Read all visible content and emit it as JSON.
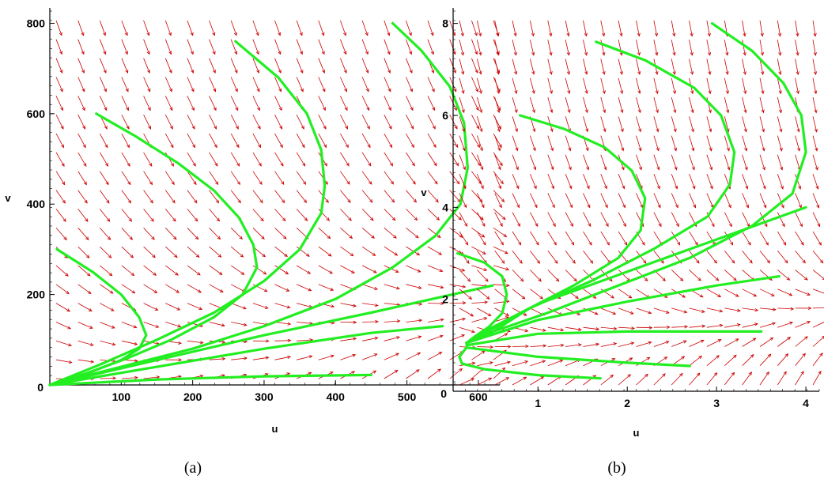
{
  "chart_data": [
    {
      "type": "line",
      "kind": "phase-portrait",
      "caption": "(a)",
      "xlabel": "u",
      "ylabel": "v",
      "xlim": [
        0,
        630
      ],
      "ylim": [
        0,
        820
      ],
      "xticks": [
        100,
        200,
        300,
        400,
        500,
        600
      ],
      "yticks": [
        200,
        400,
        600,
        800
      ],
      "origin_label": "0",
      "field_color": "#cc0000",
      "curve_color": "#22ee22",
      "series": [
        {
          "x": [
            10,
            60,
            100,
            125,
            135,
            125,
            100,
            60,
            20,
            0
          ],
          "y": [
            300,
            250,
            200,
            150,
            110,
            80,
            55,
            30,
            10,
            0
          ]
        },
        {
          "x": [
            65,
            120,
            180,
            230,
            265,
            285,
            290,
            270,
            230,
            170,
            110,
            50,
            0
          ],
          "y": [
            600,
            550,
            490,
            430,
            370,
            310,
            260,
            200,
            150,
            100,
            60,
            25,
            0
          ]
        },
        {
          "x": [
            260,
            320,
            360,
            380,
            385,
            380,
            350,
            300,
            230,
            150,
            70,
            0
          ],
          "y": [
            760,
            680,
            600,
            520,
            440,
            380,
            300,
            230,
            160,
            100,
            45,
            0
          ]
        },
        {
          "x": [
            480,
            520,
            560,
            580,
            585,
            575,
            540,
            480,
            400,
            300,
            200,
            100,
            0
          ],
          "y": [
            800,
            740,
            660,
            580,
            480,
            400,
            330,
            260,
            190,
            130,
            80,
            40,
            0
          ]
        },
        {
          "x": [
            0,
            150,
            300,
            450,
            620
          ],
          "y": [
            0,
            55,
            110,
            160,
            220
          ]
        },
        {
          "x": [
            0,
            150,
            300,
            450,
            550
          ],
          "y": [
            0,
            40,
            80,
            115,
            130
          ]
        },
        {
          "x": [
            0,
            150,
            300,
            450
          ],
          "y": [
            0,
            12,
            19,
            22
          ]
        }
      ]
    },
    {
      "type": "line",
      "kind": "phase-portrait",
      "caption": "(b)",
      "xlabel": "u",
      "ylabel": "v",
      "xlim": [
        0.05,
        4.15
      ],
      "ylim": [
        0,
        8.2
      ],
      "xticks": [
        1,
        2,
        3,
        4
      ],
      "yticks": [
        2,
        4,
        6,
        8
      ],
      "origin_label": "0",
      "field_color": "#cc0000",
      "curve_color": "#22ee22",
      "series": [
        {
          "x": [
            0.1,
            0.4,
            0.6,
            0.65,
            0.6,
            0.45,
            0.3,
            0.2
          ],
          "y": [
            3.0,
            2.8,
            2.5,
            2.1,
            1.7,
            1.4,
            1.2,
            1.05
          ]
        },
        {
          "x": [
            0.8,
            1.3,
            1.75,
            2.05,
            2.2,
            2.15,
            1.9,
            1.4,
            0.9,
            0.5,
            0.2
          ],
          "y": [
            6.0,
            5.7,
            5.3,
            4.8,
            4.2,
            3.5,
            2.9,
            2.3,
            1.8,
            1.3,
            1.05
          ]
        },
        {
          "x": [
            1.65,
            2.2,
            2.75,
            3.05,
            3.2,
            3.15,
            2.9,
            2.3,
            1.6,
            0.9,
            0.4,
            0.2
          ],
          "y": [
            7.6,
            7.2,
            6.6,
            6.0,
            5.2,
            4.5,
            3.8,
            3.1,
            2.4,
            1.8,
            1.3,
            1.05
          ]
        },
        {
          "x": [
            2.95,
            3.4,
            3.75,
            3.95,
            4.0,
            3.85,
            3.4,
            2.7,
            1.9,
            1.1,
            0.5,
            0.2
          ],
          "y": [
            8.0,
            7.4,
            6.7,
            6.0,
            5.2,
            4.3,
            3.6,
            2.9,
            2.3,
            1.7,
            1.3,
            1.05
          ]
        },
        {
          "x": [
            0.2,
            1.0,
            2.0,
            3.0,
            4.0
          ],
          "y": [
            1.05,
            1.9,
            2.6,
            3.3,
            4.0
          ]
        },
        {
          "x": [
            0.2,
            1.0,
            2.0,
            3.0,
            3.7
          ],
          "y": [
            1.05,
            1.55,
            1.95,
            2.3,
            2.5
          ]
        },
        {
          "x": [
            0.2,
            1.0,
            2.0,
            3.0,
            3.5
          ],
          "y": [
            1.0,
            1.25,
            1.3,
            1.3,
            1.3
          ]
        },
        {
          "x": [
            0.2,
            1.0,
            2.0,
            2.7
          ],
          "y": [
            0.95,
            0.75,
            0.62,
            0.55
          ]
        },
        {
          "x": [
            0.2,
            0.12,
            0.15,
            0.4,
            1.0,
            1.7
          ],
          "y": [
            0.95,
            0.75,
            0.6,
            0.48,
            0.35,
            0.28
          ]
        }
      ]
    }
  ]
}
